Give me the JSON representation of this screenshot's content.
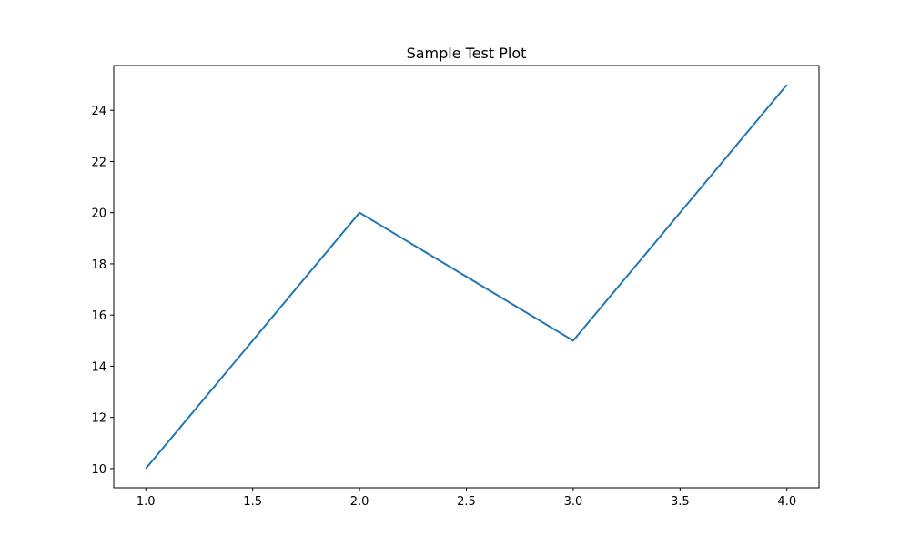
{
  "chart_data": {
    "type": "line",
    "title": "Sample Test Plot",
    "xlabel": "",
    "ylabel": "",
    "x": [
      1.0,
      2.0,
      3.0,
      4.0
    ],
    "series": [
      {
        "values": [
          10,
          20,
          15,
          25
        ],
        "color": "#1f77b4"
      }
    ],
    "xlim": [
      0.85,
      4.15
    ],
    "ylim": [
      9.25,
      25.75
    ],
    "xticks": [
      1.0,
      1.5,
      2.0,
      2.5,
      3.0,
      3.5,
      4.0
    ],
    "xtick_labels": [
      "1.0",
      "1.5",
      "2.0",
      "2.5",
      "3.0",
      "3.5",
      "4.0"
    ],
    "yticks": [
      10,
      12,
      14,
      16,
      18,
      20,
      22,
      24
    ],
    "ytick_labels": [
      "10",
      "12",
      "14",
      "16",
      "18",
      "20",
      "22",
      "24"
    ],
    "grid": false,
    "legend": false
  }
}
